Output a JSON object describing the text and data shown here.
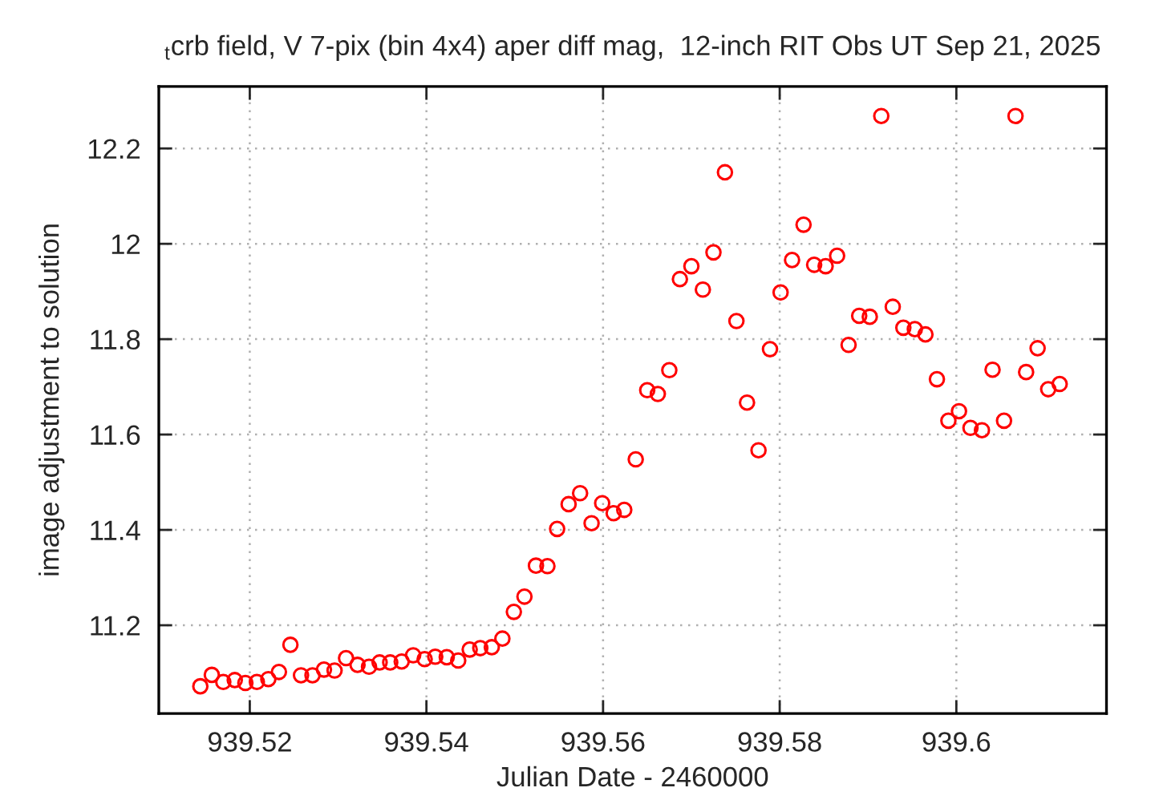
{
  "chart_data": {
    "type": "scatter",
    "title": "$_{t}$crb field, V 7-pix (bin 4x4) aper diff mag,  12-inch RIT Obs UT Sep 21, 2025",
    "xlabel": "Julian Date - 2460000",
    "ylabel": "image adjustment to solution",
    "series": [
      {
        "color": "#ff0000",
        "x": [
          939.5144,
          939.5157,
          939.517,
          939.5183,
          939.5195,
          939.5208,
          939.5221,
          939.5233,
          939.5246,
          939.5258,
          939.5271,
          939.5284,
          939.5296,
          939.5309,
          939.5322,
          939.5335,
          939.5347,
          939.5359,
          939.5372,
          939.5385,
          939.5398,
          939.541,
          939.5423,
          939.5436,
          939.5449,
          939.5461,
          939.5474,
          939.5486,
          939.5499,
          939.5511,
          939.5524,
          939.5537,
          939.5548,
          939.5561,
          939.5574,
          939.5587,
          939.5599,
          939.5612,
          939.5624,
          939.5637,
          939.565,
          939.5662,
          939.5675,
          939.5687,
          939.57,
          939.5713,
          939.5725,
          939.5738,
          939.5751,
          939.5763,
          939.5776,
          939.5789,
          939.5801,
          939.5814,
          939.5827,
          939.5839,
          939.5852,
          939.5865,
          939.5878,
          939.589,
          939.5902,
          939.5915,
          939.5928,
          939.594,
          939.5953,
          939.5965,
          939.5978,
          939.5991,
          939.6003,
          939.6016,
          939.6029,
          939.6041,
          939.6054,
          939.6067,
          939.6079,
          939.6092,
          939.6104,
          939.6117
        ],
        "values": [
          11.072,
          11.096,
          11.081,
          11.085,
          11.079,
          11.081,
          11.087,
          11.102,
          11.159,
          11.095,
          11.095,
          11.107,
          11.105,
          11.131,
          11.117,
          11.113,
          11.122,
          11.122,
          11.124,
          11.137,
          11.129,
          11.134,
          11.133,
          11.126,
          11.149,
          11.152,
          11.154,
          11.172,
          11.228,
          11.26,
          11.325,
          11.324,
          11.402,
          11.454,
          11.477,
          11.414,
          11.456,
          11.435,
          11.442,
          11.548,
          11.693,
          11.685,
          11.735,
          11.926,
          11.953,
          11.904,
          11.982,
          12.15,
          11.838,
          11.667,
          11.567,
          11.779,
          11.898,
          11.966,
          12.04,
          11.956,
          11.953,
          11.975,
          11.788,
          11.849,
          11.847,
          12.268,
          11.868,
          11.824,
          11.821,
          11.81,
          11.716,
          11.629,
          11.649,
          11.614,
          11.609,
          11.736,
          11.629,
          12.268,
          11.731,
          11.781,
          11.695,
          11.706
        ]
      }
    ],
    "xlim": [
      939.5097,
      939.617
    ],
    "ylim": [
      11.015,
      12.33
    ],
    "xticks": [
      939.52,
      939.54,
      939.56,
      939.58,
      939.6
    ],
    "yticks": [
      11.2,
      11.4,
      11.6,
      11.8,
      12,
      12.2
    ],
    "grid": true,
    "marker": "circle"
  }
}
